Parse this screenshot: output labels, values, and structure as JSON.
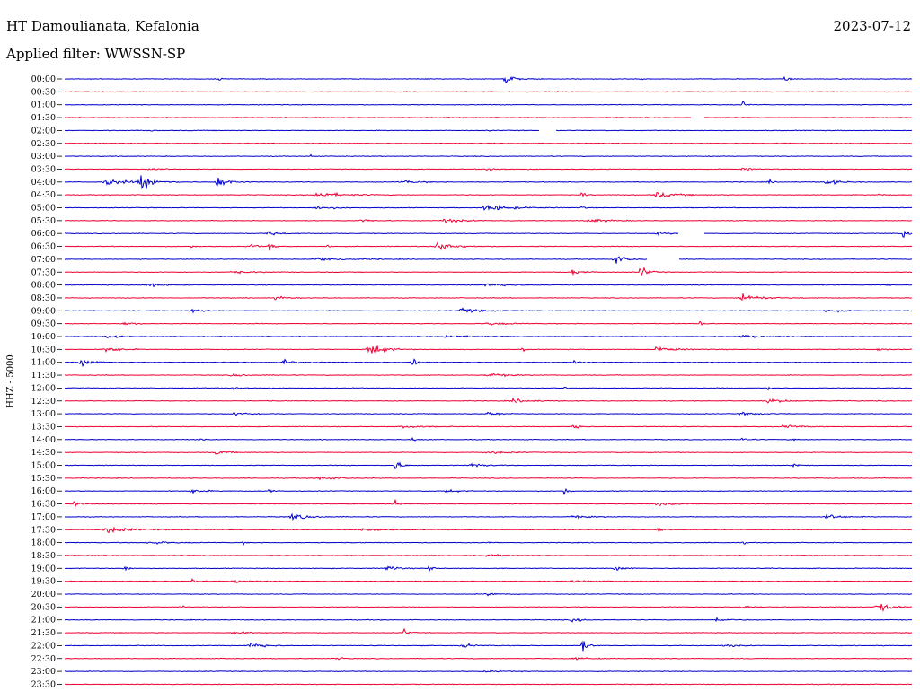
{
  "header": {
    "station": "HT Damoulianata, Kefalonia",
    "date": "2023-07-12",
    "filter": "Applied filter: WWSSN-SP",
    "channel": "HHZ - 5000"
  },
  "colors": {
    "blue": "#0000cc",
    "red": "#ee0033"
  },
  "traces": [
    {
      "time": "00:00",
      "color": "blue",
      "events": [
        [
          0.18,
          0.7,
          0.5
        ],
        [
          0.52,
          2.0,
          1.2
        ],
        [
          0.85,
          0.9,
          0.6
        ],
        [
          0.68,
          0.3,
          0.3
        ]
      ]
    },
    {
      "time": "00:30",
      "color": "red",
      "events": [
        [
          0.25,
          0.2,
          0.3
        ]
      ]
    },
    {
      "time": "01:00",
      "color": "blue",
      "events": [
        [
          0.8,
          1.6,
          0.4
        ]
      ]
    },
    {
      "time": "01:30",
      "color": "red",
      "events": [],
      "gap": [
        0.74,
        0.755
      ]
    },
    {
      "time": "02:00",
      "color": "blue",
      "events": [
        [
          0.1,
          0.4,
          0.4
        ],
        [
          0.5,
          0.3,
          0.4
        ]
      ],
      "gap": [
        0.56,
        0.58
      ]
    },
    {
      "time": "02:30",
      "color": "red",
      "events": [
        [
          0.85,
          0.2,
          0.3
        ]
      ]
    },
    {
      "time": "03:00",
      "color": "blue",
      "events": [
        [
          0.29,
          0.5,
          0.5
        ]
      ]
    },
    {
      "time": "03:30",
      "color": "red",
      "events": [
        [
          0.1,
          0.4,
          2.0
        ],
        [
          0.5,
          0.4,
          3.0
        ],
        [
          0.8,
          0.4,
          1.5
        ]
      ]
    },
    {
      "time": "04:00",
      "color": "blue",
      "events": [
        [
          0.05,
          1.0,
          3.0
        ],
        [
          0.09,
          2.5,
          2.0
        ],
        [
          0.18,
          2.0,
          1.5
        ],
        [
          0.4,
          0.4,
          3.0
        ],
        [
          0.83,
          1.4,
          0.4
        ],
        [
          0.9,
          0.8,
          2.0
        ]
      ]
    },
    {
      "time": "04:30",
      "color": "red",
      "events": [
        [
          0.3,
          0.8,
          4.0
        ],
        [
          0.61,
          1.4,
          0.4
        ],
        [
          0.7,
          0.8,
          3.0
        ],
        [
          0.96,
          0.5,
          0.5
        ]
      ]
    },
    {
      "time": "05:00",
      "color": "blue",
      "events": [
        [
          0.5,
          1.0,
          4.0
        ],
        [
          0.61,
          0.8,
          0.3
        ],
        [
          0.3,
          0.5,
          3.0
        ]
      ]
    },
    {
      "time": "05:30",
      "color": "red",
      "events": [
        [
          0.45,
          0.6,
          3.0
        ],
        [
          0.62,
          0.6,
          3.0
        ],
        [
          0.35,
          0.4,
          2.0
        ]
      ]
    },
    {
      "time": "06:00",
      "color": "blue",
      "events": [
        [
          0.24,
          0.8,
          1.5
        ],
        [
          0.7,
          0.4,
          2.0
        ],
        [
          0.99,
          2.5,
          0.5
        ]
      ],
      "gap": [
        0.725,
        0.755
      ]
    },
    {
      "time": "06:30",
      "color": "red",
      "events": [
        [
          0.22,
          1.2,
          0.8
        ],
        [
          0.24,
          1.2,
          0.8
        ],
        [
          0.31,
          2.0,
          0.2
        ],
        [
          0.44,
          1.3,
          3.0
        ],
        [
          0.15,
          0.6,
          0.4
        ]
      ]
    },
    {
      "time": "07:00",
      "color": "blue",
      "events": [
        [
          0.65,
          1.5,
          1.5
        ],
        [
          0.3,
          0.5,
          4.0
        ]
      ],
      "gap": [
        0.688,
        0.725
      ]
    },
    {
      "time": "07:30",
      "color": "red",
      "events": [
        [
          0.68,
          2.0,
          1.0
        ],
        [
          0.6,
          0.8,
          1.5
        ],
        [
          0.2,
          0.4,
          3.0
        ]
      ]
    },
    {
      "time": "08:00",
      "color": "blue",
      "events": [
        [
          0.1,
          0.5,
          2.0
        ],
        [
          0.5,
          0.6,
          3.0
        ],
        [
          0.97,
          1.2,
          0.3
        ]
      ]
    },
    {
      "time": "08:30",
      "color": "red",
      "events": [
        [
          0.8,
          1.2,
          3.0
        ],
        [
          0.25,
          0.5,
          2.0
        ]
      ]
    },
    {
      "time": "09:00",
      "color": "blue",
      "events": [
        [
          0.15,
          0.6,
          2.0
        ],
        [
          0.47,
          0.7,
          3.0
        ],
        [
          0.9,
          0.5,
          2.0
        ]
      ]
    },
    {
      "time": "09:30",
      "color": "red",
      "events": [
        [
          0.07,
          0.5,
          2.0
        ],
        [
          0.75,
          0.8,
          0.5
        ],
        [
          0.5,
          0.4,
          3.0
        ]
      ]
    },
    {
      "time": "10:00",
      "color": "blue",
      "events": [
        [
          0.05,
          0.5,
          2.0
        ],
        [
          0.45,
          0.5,
          3.0
        ],
        [
          0.8,
          0.4,
          3.0
        ]
      ]
    },
    {
      "time": "10:30",
      "color": "red",
      "events": [
        [
          0.05,
          1.0,
          2.0
        ],
        [
          0.36,
          2.8,
          2.0
        ],
        [
          0.54,
          1.0,
          0.3
        ],
        [
          0.7,
          0.7,
          3.0
        ],
        [
          0.96,
          0.5,
          1.0
        ]
      ]
    },
    {
      "time": "11:00",
      "color": "blue",
      "events": [
        [
          0.02,
          1.0,
          2.0
        ],
        [
          0.41,
          2.0,
          0.8
        ],
        [
          0.26,
          0.7,
          2.0
        ],
        [
          0.6,
          0.6,
          1.0
        ]
      ]
    },
    {
      "time": "11:30",
      "color": "red",
      "events": [
        [
          0.5,
          0.6,
          3.0
        ],
        [
          0.2,
          0.4,
          3.0
        ]
      ]
    },
    {
      "time": "12:00",
      "color": "blue",
      "events": [
        [
          0.59,
          0.8,
          0.3
        ],
        [
          0.83,
          0.7,
          0.5
        ],
        [
          0.2,
          0.4,
          3.0
        ]
      ]
    },
    {
      "time": "12:30",
      "color": "red",
      "events": [
        [
          0.53,
          0.6,
          3.0
        ],
        [
          0.83,
          0.6,
          3.0
        ]
      ]
    },
    {
      "time": "13:00",
      "color": "blue",
      "events": [
        [
          0.5,
          0.7,
          2.0
        ],
        [
          0.2,
          0.5,
          3.0
        ],
        [
          0.8,
          0.4,
          3.0
        ]
      ]
    },
    {
      "time": "13:30",
      "color": "red",
      "events": [
        [
          0.6,
          1.2,
          1.0
        ],
        [
          0.85,
          0.6,
          2.0
        ],
        [
          0.4,
          0.4,
          3.0
        ]
      ]
    },
    {
      "time": "14:00",
      "color": "blue",
      "events": [
        [
          0.16,
          0.8,
          0.3
        ],
        [
          0.41,
          0.6,
          0.8
        ],
        [
          0.8,
          1.0,
          0.8
        ],
        [
          0.86,
          0.6,
          0.5
        ]
      ]
    },
    {
      "time": "14:30",
      "color": "red",
      "events": [
        [
          0.18,
          0.6,
          2.0
        ],
        [
          0.5,
          0.4,
          3.0
        ]
      ]
    },
    {
      "time": "15:00",
      "color": "blue",
      "events": [
        [
          0.39,
          1.6,
          0.9
        ],
        [
          0.48,
          0.7,
          2.0
        ],
        [
          0.86,
          0.8,
          0.6
        ]
      ]
    },
    {
      "time": "15:30",
      "color": "red",
      "events": [
        [
          0.57,
          0.6,
          0.3
        ],
        [
          0.3,
          0.5,
          3.0
        ]
      ]
    },
    {
      "time": "16:00",
      "color": "blue",
      "events": [
        [
          0.24,
          1.1,
          0.5
        ],
        [
          0.59,
          1.6,
          0.5
        ],
        [
          0.15,
          0.6,
          2.0
        ],
        [
          0.45,
          0.5,
          2.0
        ]
      ]
    },
    {
      "time": "16:30",
      "color": "red",
      "events": [
        [
          0.01,
          1.0,
          1.0
        ],
        [
          0.39,
          1.0,
          0.6
        ],
        [
          0.7,
          0.4,
          3.0
        ]
      ]
    },
    {
      "time": "17:00",
      "color": "blue",
      "events": [
        [
          0.27,
          0.8,
          3.0
        ],
        [
          0.9,
          0.9,
          2.0
        ],
        [
          0.6,
          0.4,
          3.0
        ]
      ]
    },
    {
      "time": "17:30",
      "color": "red",
      "events": [
        [
          0.05,
          0.9,
          4.0
        ],
        [
          0.7,
          1.0,
          0.6
        ],
        [
          0.35,
          0.5,
          3.0
        ]
      ]
    },
    {
      "time": "18:00",
      "color": "blue",
      "events": [
        [
          0.21,
          0.6,
          0.4
        ],
        [
          0.5,
          0.6,
          0.4
        ],
        [
          0.8,
          0.6,
          0.4
        ],
        [
          0.1,
          0.5,
          3.0
        ]
      ]
    },
    {
      "time": "18:30",
      "color": "red",
      "events": [
        [
          0.5,
          0.3,
          3.0
        ]
      ]
    },
    {
      "time": "19:00",
      "color": "blue",
      "events": [
        [
          0.07,
          1.3,
          0.5
        ],
        [
          0.38,
          1.0,
          1.5
        ],
        [
          0.43,
          1.2,
          0.5
        ],
        [
          0.65,
          0.5,
          2.0
        ]
      ]
    },
    {
      "time": "19:30",
      "color": "red",
      "events": [
        [
          0.15,
          1.0,
          0.8
        ],
        [
          0.2,
          0.5,
          2.0
        ],
        [
          0.6,
          0.3,
          3.0
        ]
      ]
    },
    {
      "time": "20:00",
      "color": "blue",
      "events": [
        [
          0.5,
          0.3,
          3.0
        ]
      ]
    },
    {
      "time": "20:30",
      "color": "red",
      "events": [
        [
          0.96,
          1.5,
          2.0
        ],
        [
          0.14,
          0.5,
          0.2
        ],
        [
          0.8,
          0.3,
          3.0
        ]
      ]
    },
    {
      "time": "21:00",
      "color": "blue",
      "events": [
        [
          0.77,
          0.7,
          1.5
        ],
        [
          0.6,
          0.4,
          2.0
        ]
      ]
    },
    {
      "time": "21:30",
      "color": "red",
      "events": [
        [
          0.4,
          1.2,
          0.6
        ],
        [
          0.2,
          0.3,
          3.0
        ]
      ]
    },
    {
      "time": "22:00",
      "color": "blue",
      "events": [
        [
          0.22,
          1.2,
          2.0
        ],
        [
          0.61,
          2.2,
          0.8
        ],
        [
          0.47,
          0.7,
          1.5
        ],
        [
          0.78,
          0.4,
          2.0
        ]
      ]
    },
    {
      "time": "22:30",
      "color": "red",
      "events": [
        [
          0.32,
          0.6,
          0.8
        ],
        [
          0.6,
          0.3,
          3.0
        ]
      ]
    },
    {
      "time": "23:00",
      "color": "blue",
      "events": [
        [
          0.5,
          0.2,
          3.0
        ]
      ]
    },
    {
      "time": "23:30",
      "color": "red",
      "events": [
        [
          0.18,
          0.5,
          0.2
        ]
      ]
    }
  ]
}
